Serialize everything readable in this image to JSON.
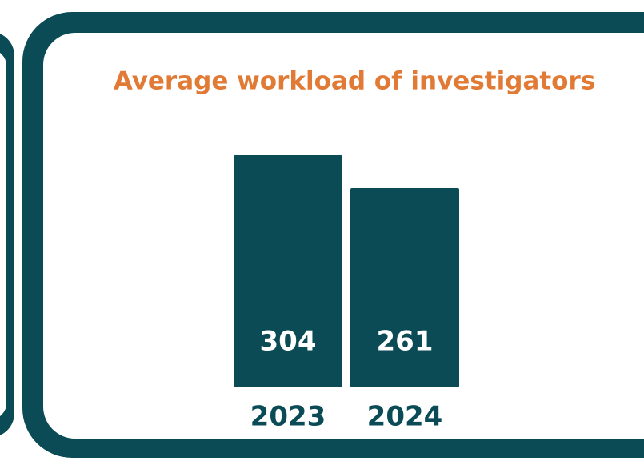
{
  "chart_data": {
    "type": "bar",
    "title": "Average workload of investigators",
    "categories": [
      "2023",
      "2024"
    ],
    "values": [
      304,
      261
    ],
    "color": "#0a4b56"
  }
}
